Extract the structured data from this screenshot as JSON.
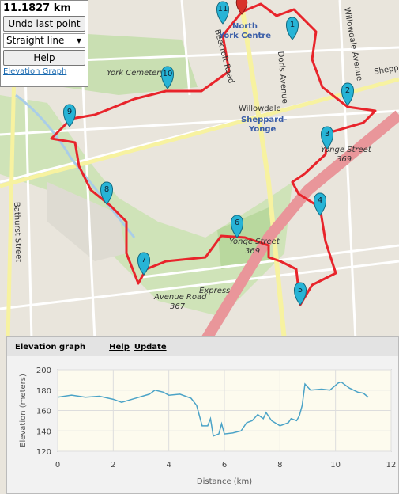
{
  "panel": {
    "distance": "11.1827 km",
    "undo": "Undo last point",
    "mode": "Straight line",
    "help": "Help",
    "elevation_link": "Elevation Graph"
  },
  "map": {
    "labels": {
      "north_york": "North",
      "north_york2": "York Centre",
      "willowdale": "Willowdale",
      "sheppard_yonge": "Sheppard-",
      "sheppard_yonge2": "Yonge",
      "yonge_street": "Yonge Street",
      "yonge_369": "369",
      "yonge_street_b": "Yonge Street",
      "yonge_369_b": "369",
      "york_cemetery": "York Cemetery",
      "avenue_road": "Avenue Road",
      "avenue_367": "367",
      "express": "Express",
      "bathurst": "Bathurst Street",
      "doris": "Doris Avenue",
      "willowdale_ave": "Willowdale Avenue",
      "beecroft": "Beecroft Road",
      "sheppard": "Sheppard"
    },
    "markers": [
      "1",
      "2",
      "3",
      "4",
      "5",
      "6",
      "7",
      "8",
      "9",
      "10",
      "11"
    ]
  },
  "elevation_panel": {
    "title": "Elevation graph",
    "help": "Help",
    "update": "Update"
  },
  "chart_data": {
    "type": "line",
    "xlabel": "Distance (km)",
    "ylabel": "Elevation (meters)",
    "color": "#4ba3c7",
    "x": [
      0,
      0.5,
      1,
      1.5,
      2,
      2.3,
      2.8,
      3.3,
      3.5,
      3.8,
      4,
      4.4,
      4.8,
      5,
      5.2,
      5.4,
      5.5,
      5.6,
      5.8,
      5.9,
      6,
      6.3,
      6.6,
      6.8,
      7,
      7.2,
      7.4,
      7.5,
      7.7,
      8,
      8.3,
      8.4,
      8.6,
      8.7,
      8.8,
      8.9,
      9.1,
      9.5,
      9.8,
      10.1,
      10.2,
      10.5,
      10.8,
      11,
      11.18
    ],
    "values": [
      173,
      175,
      173,
      174,
      171,
      168,
      172,
      176,
      180,
      178,
      175,
      176,
      172,
      165,
      145,
      145,
      152,
      135,
      137,
      147,
      137,
      138,
      140,
      148,
      150,
      156,
      152,
      158,
      150,
      145,
      148,
      152,
      150,
      155,
      165,
      186,
      180,
      181,
      180,
      187,
      188,
      182,
      178,
      177,
      173
    ],
    "xlim": [
      0,
      12
    ],
    "xticks": [
      0,
      2,
      4,
      6,
      8,
      10,
      12
    ],
    "ylim": [
      120,
      200
    ],
    "yticks": [
      120,
      140,
      160,
      180,
      200
    ],
    "grid": true
  }
}
